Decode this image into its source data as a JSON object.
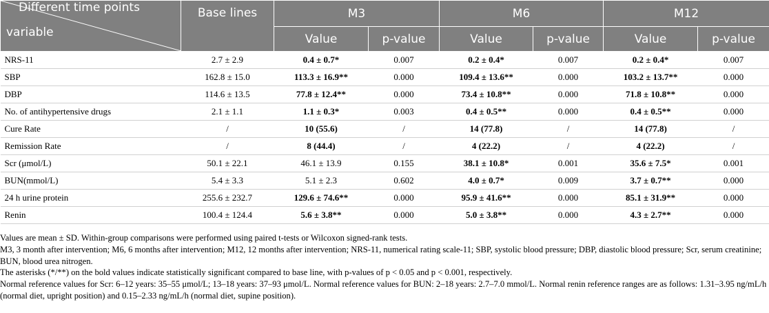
{
  "table": {
    "corner_top": "Different time points",
    "corner_bottom": "variable",
    "groups": [
      "Base lines",
      "M3",
      "M6",
      "M12"
    ],
    "subheaders": [
      "Value",
      "p-value",
      "Value",
      "p-value",
      "Value",
      "p-value"
    ],
    "rows": [
      {
        "cells": [
          "NRS-11",
          "2.7 ± 2.9",
          "0.4 ± 0.7*",
          "0.007",
          "0.2 ± 0.4*",
          "0.007",
          "0.2 ± 0.4*",
          "0.007"
        ],
        "bold": [
          2,
          4,
          6
        ]
      },
      {
        "cells": [
          "SBP",
          "162.8 ± 15.0",
          "113.3 ± 16.9**",
          "0.000",
          "109.4 ± 13.6**",
          "0.000",
          "103.2 ± 13.7**",
          "0.000"
        ],
        "bold": [
          2,
          4,
          6
        ]
      },
      {
        "cells": [
          "DBP",
          "114.6 ± 13.5",
          "77.8 ± 12.4**",
          "0.000",
          "73.4 ± 10.8**",
          "0.000",
          "71.8 ± 10.8**",
          "0.000"
        ],
        "bold": [
          2,
          4,
          6
        ]
      },
      {
        "cells": [
          "No. of antihypertensive drugs",
          "2.1 ± 1.1",
          "1.1 ± 0.3*",
          "0.003",
          "0.4 ± 0.5**",
          "0.000",
          "0.4 ± 0.5**",
          "0.000"
        ],
        "bold": [
          2,
          4,
          6
        ]
      },
      {
        "cells": [
          "Cure Rate",
          "/",
          "10 (55.6)",
          "/",
          "14 (77.8)",
          "/",
          "14 (77.8)",
          "/"
        ],
        "bold": [
          2,
          4,
          6
        ]
      },
      {
        "cells": [
          "Remission Rate",
          "/",
          "8 (44.4)",
          "/",
          "4 (22.2)",
          "/",
          "4 (22.2)",
          "/"
        ],
        "bold": [
          2,
          4,
          6
        ]
      },
      {
        "cells": [
          "Scr (μmol/L)",
          "50.1 ± 22.1",
          "46.1 ± 13.9",
          "0.155",
          "38.1 ± 10.8*",
          "0.001",
          "35.6 ± 7.5*",
          "0.001"
        ],
        "bold": [
          4,
          6
        ]
      },
      {
        "cells": [
          "BUN(mmol/L)",
          "5.4 ± 3.3",
          "5.1 ± 2.3",
          "0.602",
          "4.0 ± 0.7*",
          "0.009",
          "3.7 ± 0.7**",
          "0.000"
        ],
        "bold": [
          4,
          6
        ]
      },
      {
        "cells": [
          "24 h  urine protein",
          "255.6 ± 232.7",
          "129.6 ± 74.6**",
          "0.000",
          "95.9 ± 41.6**",
          "0.000",
          "85.1 ± 31.9**",
          "0.000"
        ],
        "bold": [
          2,
          4,
          6
        ]
      },
      {
        "cells": [
          "Renin",
          "100.4 ± 124.4",
          "5.6 ± 3.8**",
          "0.000",
          "5.0 ± 3.8**",
          "0.000",
          "4.3 ± 2.7**",
          "0.000"
        ],
        "bold": [
          2,
          4,
          6
        ]
      }
    ]
  },
  "footnotes": [
    "Values are mean ± SD. Within-group comparisons were performed using paired t-tests or Wilcoxon signed-rank tests.",
    "M3, 3 month after intervention; M6, 6 months after intervention; M12, 12 months after intervention; NRS-11, numerical rating scale-11; SBP, systolic blood pressure; DBP, diastolic blood pressure; Scr, serum creatinine; BUN, blood urea nitrogen.",
    "The asterisks (*/**) on the bold values indicate statistically significant compared to base line, with p-values of p < 0.05 and p < 0.001, respectively.",
    "Normal reference values for Scr: 6–12 years: 35–55 μmol/L; 13–18 years: 37–93 μmol/L. Normal reference values for BUN: 2–18 years: 2.7–7.0 mmol/L. Normal renin reference ranges are as follows: 1.31–3.95 ng/mL/h (normal diet, upright position) and 0.15–2.33 ng/mL/h (normal diet, supine position)."
  ]
}
